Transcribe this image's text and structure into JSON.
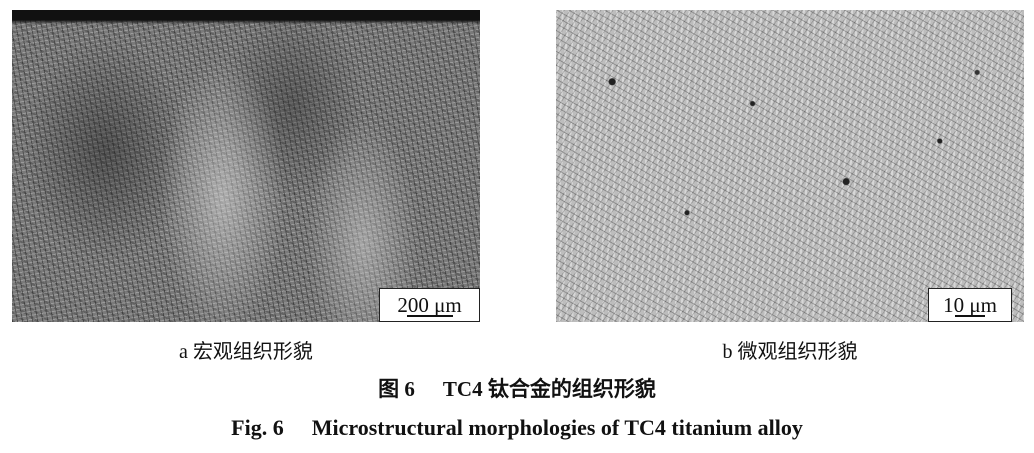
{
  "panels": [
    {
      "label": "a",
      "caption": "宏观组织形貌",
      "scale_bar": "200 μm"
    },
    {
      "label": "b",
      "caption": "微观组织形貌",
      "scale_bar": "10 μm"
    }
  ],
  "figure": {
    "cn_number": "图 6",
    "cn_title": "TC4 钛合金的组织形貌",
    "en_number": "Fig. 6",
    "en_title": "Microstructural morphologies of TC4 titanium alloy"
  }
}
